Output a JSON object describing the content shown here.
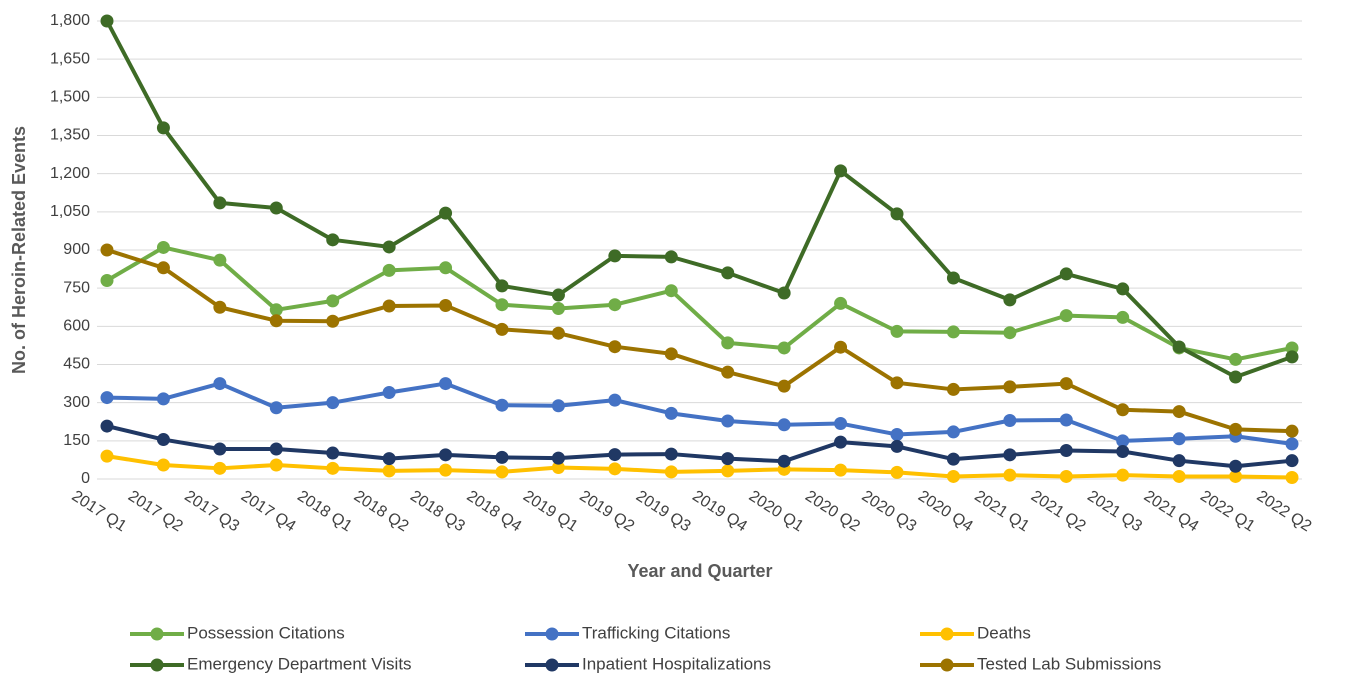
{
  "chart_data": {
    "type": "line",
    "x_label": "Year and Quarter",
    "y_label": "No. of Heroin-Related Events",
    "categories": [
      "2017 Q1",
      "2017 Q2",
      "2017 Q3",
      "2017 Q4",
      "2018 Q1",
      "2018 Q2",
      "2018 Q3",
      "2018 Q4",
      "2019 Q1",
      "2019 Q2",
      "2019 Q3",
      "2019 Q4",
      "2020 Q1",
      "2020 Q2",
      "2020 Q3",
      "2020 Q4",
      "2021 Q1",
      "2021 Q2",
      "2021 Q3",
      "2021 Q4",
      "2022 Q1",
      "2022 Q2"
    ],
    "ylim": [
      0,
      1800
    ],
    "yticks": [
      0,
      150,
      300,
      450,
      600,
      750,
      900,
      {
        "value": 1050,
        "label": "1,050"
      },
      {
        "value": 1200,
        "label": "1,200"
      },
      {
        "value": 1350,
        "label": "1,350"
      },
      {
        "value": 1500,
        "label": "1,500"
      },
      {
        "value": 1650,
        "label": "1,650"
      },
      {
        "value": 1800,
        "label": "1,800"
      }
    ],
    "grid": true,
    "legend": "bottom",
    "series": [
      {
        "name": "Possession Citations",
        "color": "#70ad47",
        "values": [
          780,
          910,
          860,
          665,
          700,
          820,
          830,
          685,
          670,
          685,
          740,
          535,
          515,
          690,
          580,
          578,
          575,
          642,
          635,
          515,
          470,
          515
        ]
      },
      {
        "name": "Trafficking Citations",
        "color": "#4472c4",
        "values": [
          320,
          315,
          375,
          280,
          300,
          340,
          375,
          290,
          288,
          310,
          258,
          228,
          213,
          218,
          175,
          185,
          230,
          232,
          150,
          158,
          168,
          138
        ]
      },
      {
        "name": "Deaths",
        "color": "#ffc000",
        "values": [
          90,
          55,
          42,
          55,
          42,
          32,
          35,
          28,
          45,
          40,
          28,
          32,
          38,
          35,
          26,
          10,
          15,
          10,
          15,
          10,
          10,
          6
        ]
      },
      {
        "name": "Emergency Department Visits",
        "color": "#3e6b26",
        "values": [
          1800,
          1380,
          1085,
          1065,
          940,
          912,
          1045,
          759,
          723,
          877,
          873,
          810,
          731,
          1211,
          1042,
          790,
          704,
          806,
          747,
          519,
          401,
          480
        ]
      },
      {
        "name": "Inpatient Hospitalizations",
        "color": "#203864",
        "values": [
          208,
          155,
          118,
          118,
          102,
          80,
          95,
          85,
          82,
          96,
          98,
          80,
          70,
          145,
          128,
          78,
          95,
          112,
          108,
          72,
          50,
          72
        ]
      },
      {
        "name": "Tested Lab Submissions",
        "color": "#9c7300",
        "values": [
          900,
          830,
          675,
          622,
          620,
          680,
          682,
          588,
          573,
          520,
          492,
          420,
          365,
          518,
          378,
          352,
          362,
          375,
          272,
          265,
          195,
          188
        ]
      }
    ]
  }
}
